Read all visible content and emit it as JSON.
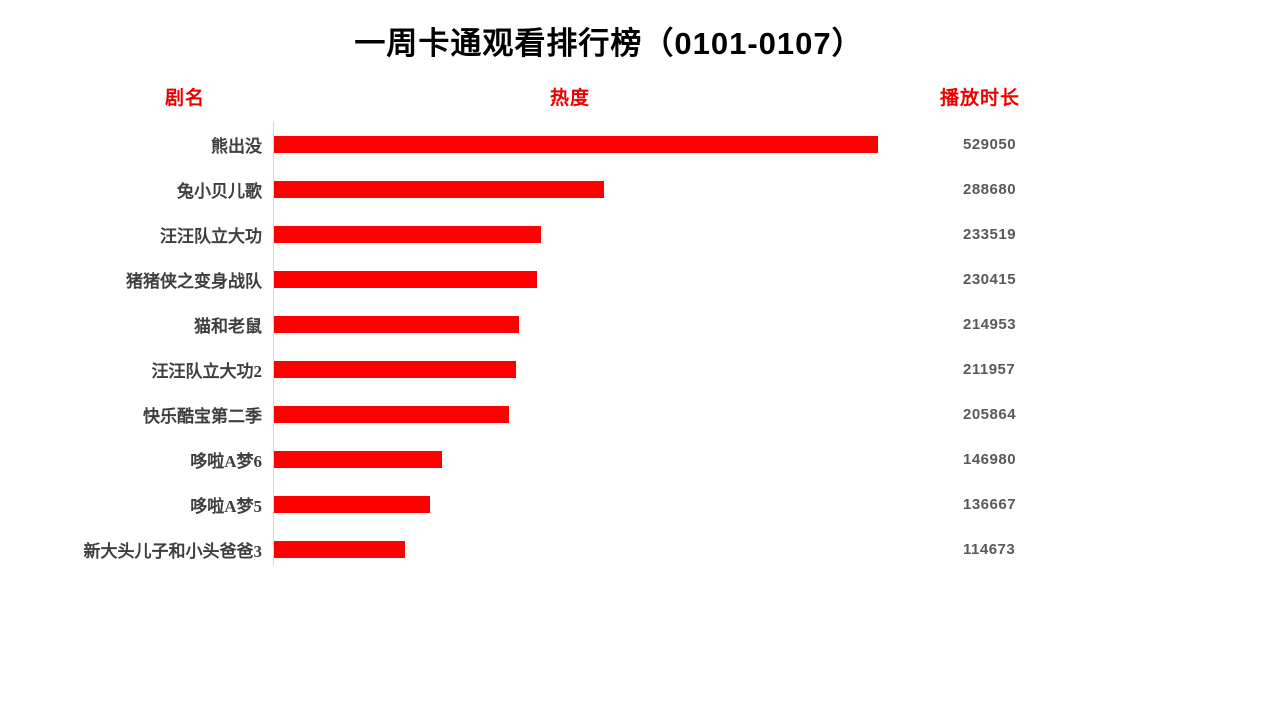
{
  "title": "一周卡通观看排行榜（0101-0107）",
  "column_headers": {
    "name": "剧名",
    "heat": "热度",
    "duration": "播放时长"
  },
  "colors": {
    "bar": "#ff0000",
    "header_text": "#ed0000",
    "title_text": "#000000",
    "category_text": "#3f3f3f",
    "value_text": "#595959",
    "axis_line": "#d9d9d9",
    "background": "#ffffff"
  },
  "chart_data": {
    "type": "bar",
    "orientation": "horizontal",
    "title": "一周卡通观看排行榜（0101-0107）",
    "category_axis_label": "剧名",
    "value_series_label": "热度",
    "data_label_column": "播放时长",
    "categories": [
      "熊出没",
      "兔小贝儿歌",
      "汪汪队立大功",
      "猪猪侠之变身战队",
      "猫和老鼠",
      "汪汪队立大功2",
      "快乐酷宝第二季",
      "哆啦A梦6",
      "哆啦A梦5",
      "新大头儿子和小头爸爸3"
    ],
    "values": [
      529050,
      288680,
      233519,
      230415,
      214953,
      211957,
      205864,
      146980,
      136667,
      114673
    ],
    "sorted": "descending",
    "grid": false,
    "legend": "none",
    "bar_color": "#ff0000",
    "value_axis_shown": false
  }
}
